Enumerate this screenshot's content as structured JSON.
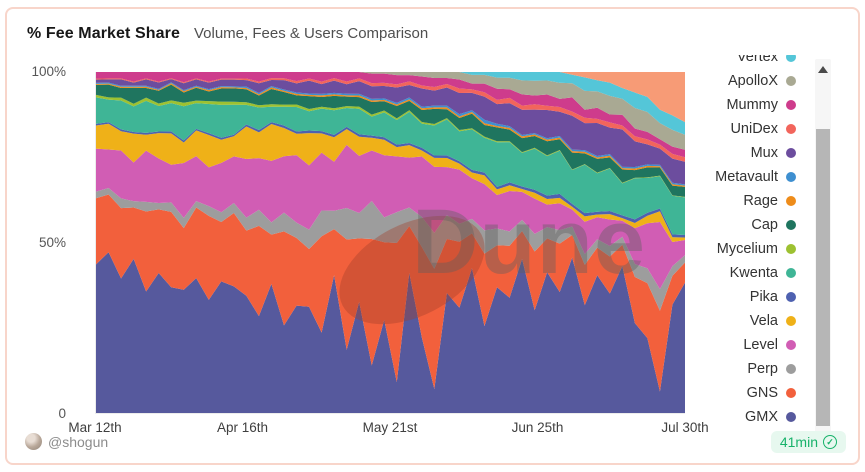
{
  "header": {
    "title": "% Fee Market Share",
    "subtitle": "Volume, Fees & Users Comparison"
  },
  "footer": {
    "author": "@shogun",
    "freshness": "41min",
    "freshness_color": "#17b26a",
    "check_glyph": "✓"
  },
  "watermark": {
    "text": "Dune"
  },
  "chart_data": {
    "type": "area",
    "stacked": true,
    "normalized_to_100_percent": true,
    "title": "% Fee Market Share",
    "x_range": [
      "Mar 12th",
      "Jul 30th"
    ],
    "x_ticks": [
      "Mar 12th",
      "Apr 16th",
      "May 21st",
      "Jun 25th",
      "Jul 30th"
    ],
    "y_ticks": [
      {
        "label": "0",
        "value": 0
      },
      {
        "label": "50%",
        "value": 50
      },
      {
        "label": "100%",
        "value": 100
      }
    ],
    "ylim": [
      0,
      100
    ],
    "grid": false,
    "legend_position": "right-scrollable",
    "series_bottom_to_top": true,
    "series": [
      {
        "name": "GMX",
        "color": "#56599d",
        "values": [
          45,
          50,
          42,
          48,
          38,
          44,
          40,
          36,
          42,
          35,
          40,
          38,
          36,
          30,
          42,
          28,
          35,
          33,
          25,
          45,
          20,
          35,
          15,
          30,
          10,
          45,
          25,
          8,
          40,
          35,
          50,
          30,
          45,
          40,
          55,
          35,
          50,
          45,
          55,
          40,
          50,
          45,
          55,
          35,
          30,
          8,
          45,
          52
        ]
      },
      {
        "name": "GNS",
        "color": "#f2603c",
        "values": [
          20,
          18,
          22,
          16,
          25,
          20,
          24,
          18,
          22,
          26,
          18,
          22,
          20,
          28,
          16,
          30,
          22,
          18,
          30,
          15,
          35,
          20,
          40,
          25,
          45,
          15,
          30,
          40,
          18,
          22,
          12,
          25,
          15,
          18,
          10,
          20,
          12,
          18,
          8,
          15,
          10,
          14,
          8,
          18,
          22,
          30,
          12,
          8
        ]
      },
      {
        "name": "Perp",
        "color": "#9d9d9d",
        "values": [
          2,
          2,
          3,
          2,
          3,
          2,
          3,
          3,
          2,
          3,
          3,
          3,
          4,
          5,
          4,
          6,
          5,
          6,
          8,
          6,
          10,
          8,
          12,
          8,
          10,
          6,
          10,
          12,
          8,
          6,
          5,
          8,
          6,
          5,
          4,
          6,
          4,
          5,
          3,
          4,
          3,
          4,
          3,
          5,
          6,
          8,
          4,
          3
        ]
      },
      {
        "name": "Level",
        "color": "#d15db4",
        "values": [
          13,
          12,
          15,
          12,
          16,
          14,
          12,
          16,
          14,
          12,
          15,
          14,
          18,
          16,
          20,
          18,
          22,
          20,
          18,
          16,
          20,
          18,
          16,
          20,
          18,
          16,
          20,
          22,
          16,
          18,
          14,
          16,
          12,
          14,
          10,
          12,
          8,
          10,
          6,
          12,
          8,
          10,
          6,
          14,
          18,
          25,
          10,
          6
        ]
      },
      {
        "name": "Vela",
        "color": "#efb118",
        "values": [
          7,
          8,
          6,
          9,
          5,
          8,
          10,
          6,
          8,
          10,
          7,
          6,
          10,
          8,
          12,
          9,
          7,
          10,
          6,
          8,
          5,
          6,
          4,
          5,
          3,
          4,
          2,
          3,
          3,
          2,
          2,
          3,
          2,
          2,
          1,
          2,
          2,
          2,
          1,
          2,
          1,
          2,
          1,
          2,
          3,
          4,
          2,
          1
        ]
      },
      {
        "name": "Pika",
        "color": "#4e61b0",
        "values": [
          0.5,
          0.5,
          0.6,
          0.5,
          0.6,
          0.5,
          0.6,
          0.6,
          0.5,
          0.6,
          0.6,
          0.5,
          0.6,
          0.7,
          0.6,
          0.8,
          0.7,
          0.8,
          0.7,
          0.8,
          0.7,
          0.8,
          0.7,
          0.8,
          0.8,
          0.7,
          0.9,
          0.8,
          0.9,
          0.8,
          0.9,
          1,
          0.9,
          1,
          0.9,
          1,
          1.2,
          1.5,
          1,
          1.2,
          1,
          1.2,
          1,
          1.4,
          1.2,
          1,
          1.2,
          1
        ]
      },
      {
        "name": "Kwenta",
        "color": "#3fb596",
        "values": [
          8,
          7,
          9,
          8,
          10,
          8,
          9,
          10,
          8,
          9,
          10,
          9,
          6,
          7,
          5,
          6,
          8,
          6,
          7,
          8,
          6,
          8,
          6,
          8,
          8,
          10,
          8,
          10,
          12,
          10,
          14,
          12,
          16,
          14,
          12,
          14,
          14,
          16,
          12,
          18,
          14,
          16,
          12,
          16,
          14,
          12,
          16,
          15
        ]
      },
      {
        "name": "Mycelium",
        "color": "#9dc131",
        "values": [
          0.8,
          0.7,
          0.9,
          0.8,
          1,
          0.8,
          0.9,
          1,
          0.8,
          0.9,
          1,
          0.9,
          0.8,
          0.7,
          0.8,
          0.7,
          0.8,
          0.7,
          0.6,
          0.7,
          0.6,
          0.7,
          0.6,
          0.6,
          0.5,
          0.5,
          0.5,
          0.5,
          0.4,
          0.4,
          0.4,
          0.4,
          0.3,
          0.3,
          0.3,
          0.3,
          0.3,
          0.3,
          0.2,
          0.2,
          0.2,
          0.2,
          0.2,
          0.2,
          0.2,
          0.2,
          0.2,
          0.2
        ]
      },
      {
        "name": "Cap",
        "color": "#1f755f",
        "values": [
          3,
          4,
          3,
          5,
          3,
          4,
          5,
          3,
          4,
          3,
          4,
          4,
          4,
          3,
          5,
          4,
          3,
          4,
          3,
          4,
          3,
          3,
          4,
          3,
          4,
          3,
          4,
          5,
          3,
          4,
          5,
          4,
          5,
          4,
          5,
          4,
          5,
          4,
          6,
          4,
          5,
          4,
          5,
          3,
          4,
          3,
          4,
          4
        ]
      },
      {
        "name": "Rage",
        "color": "#ee8c1a",
        "values": [
          0.3,
          0.3,
          0.4,
          0.3,
          0.4,
          0.3,
          0.4,
          0.4,
          0.3,
          0.4,
          0.4,
          0.3,
          0.4,
          0.4,
          0.5,
          0.4,
          0.5,
          0.4,
          0.5,
          0.5,
          0.4,
          0.5,
          0.5,
          0.4,
          0.5,
          0.5,
          0.6,
          0.5,
          0.6,
          0.5,
          0.6,
          0.6,
          0.5,
          0.6,
          0.6,
          0.5,
          0.6,
          0.6,
          0.5,
          0.6,
          0.5,
          0.6,
          0.5,
          0.6,
          0.6,
          0.5,
          0.6,
          0.5
        ]
      },
      {
        "name": "Metavault",
        "color": "#3e8fd0",
        "values": [
          0.3,
          0.3,
          0.3,
          0.3,
          0.3,
          0.3,
          0.3,
          0.3,
          0.3,
          0.3,
          0.3,
          0.3,
          0.4,
          0.4,
          0.4,
          0.4,
          0.4,
          0.4,
          0.5,
          0.5,
          0.5,
          0.5,
          0.5,
          0.5,
          0.5,
          0.6,
          0.5,
          0.6,
          0.6,
          0.8,
          0.6,
          1.2,
          0.8,
          0.6,
          0.5,
          0.5,
          0.5,
          0.6,
          0.5,
          0.6,
          0.5,
          0.6,
          0.5,
          0.6,
          0.6,
          0.5,
          0.6,
          0.5
        ]
      },
      {
        "name": "Mux",
        "color": "#6c4d9e",
        "values": [
          1,
          1,
          2,
          1,
          2,
          2,
          1,
          2,
          2,
          2,
          2,
          2,
          2,
          3,
          2,
          3,
          3,
          4,
          3,
          4,
          3,
          4,
          4,
          4,
          5,
          4,
          6,
          5,
          6,
          7,
          6,
          8,
          7,
          8,
          9,
          8,
          10,
          9,
          12,
          10,
          12,
          10,
          14,
          10,
          8,
          6,
          10,
          9
        ]
      },
      {
        "name": "UniDex",
        "color": "#f2655c",
        "values": [
          0.3,
          0.3,
          0.3,
          0.3,
          0.3,
          0.3,
          0.3,
          0.3,
          0.3,
          0.3,
          0.3,
          0.3,
          0.5,
          0.5,
          0.6,
          0.6,
          0.7,
          0.7,
          0.8,
          0.8,
          0.9,
          0.9,
          1,
          1,
          1,
          1.2,
          1,
          1.2,
          1.2,
          1.5,
          1.2,
          1.5,
          1.5,
          1.8,
          1.5,
          1.8,
          1.5,
          1.8,
          1.5,
          2,
          1.5,
          2,
          1.5,
          2,
          2,
          1.5,
          2,
          1.8
        ]
      },
      {
        "name": "Mummy",
        "color": "#ce3c8c",
        "values": [
          2,
          2,
          2,
          3,
          2,
          3,
          2,
          3,
          2,
          3,
          2,
          2,
          2,
          3,
          2,
          2,
          3,
          2,
          3,
          2,
          3,
          2,
          3,
          3,
          3,
          2,
          3,
          3,
          2,
          3,
          2,
          3,
          4,
          3,
          4,
          3,
          4,
          3,
          5,
          3,
          4,
          3,
          4,
          3,
          3,
          2,
          3,
          3
        ]
      },
      {
        "name": "ApolloX",
        "color": "#a9a993",
        "values": [
          0,
          0,
          0,
          0,
          0,
          0,
          0,
          0,
          0,
          0,
          0,
          0,
          0,
          0,
          0,
          0,
          0,
          0,
          0,
          0,
          0,
          0,
          0.5,
          0.5,
          1,
          1,
          1.5,
          2,
          2,
          2.5,
          3,
          3,
          4,
          4,
          5,
          5,
          5,
          6,
          5,
          7,
          6,
          7,
          6,
          8,
          8,
          6,
          7,
          6
        ]
      },
      {
        "name": "Vertex",
        "color": "#54c6d8",
        "values": [
          0,
          0,
          0,
          0,
          0,
          0,
          0,
          0,
          0,
          0,
          0,
          0,
          0,
          0,
          0,
          0,
          0,
          0,
          0,
          0,
          0,
          0,
          0,
          0,
          0,
          0,
          0,
          0,
          0,
          0,
          1,
          1,
          2,
          2,
          3,
          3,
          3,
          4,
          3,
          5,
          4,
          5,
          4,
          6,
          6,
          5,
          6,
          5
        ]
      },
      {
        "name": "",
        "legend_visible": false,
        "note": "topmost coral area; legend entry scrolled out of view",
        "color": "#f79b76",
        "values": [
          0,
          0,
          0,
          0,
          0,
          0,
          0,
          0,
          0,
          0,
          0,
          0,
          0,
          0,
          0,
          0,
          0,
          0,
          0,
          0,
          0,
          0,
          0,
          0,
          0,
          0,
          0,
          0,
          0,
          0,
          0,
          0,
          0,
          0,
          0,
          0,
          0,
          0,
          1,
          2,
          3,
          4,
          6,
          8,
          10,
          14,
          18,
          20
        ]
      }
    ]
  }
}
